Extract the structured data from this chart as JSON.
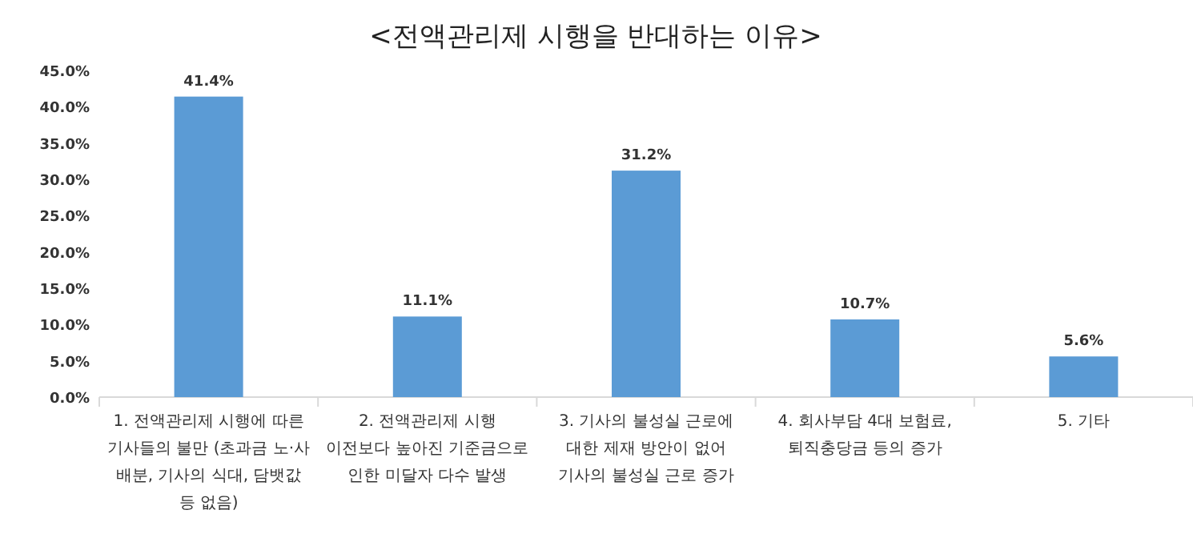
{
  "chart_data": {
    "type": "bar",
    "title": "<전액관리제 시행을 반대하는 이유>",
    "categories": [
      "1. 전액관리제 시행에 따른 기사들의 불만 (초과금 노·사 배분, 기사의 식대, 담뱃값 등 없음)",
      "2. 전액관리제 시행 이전보다 높아진 기준금으로 인한 미달자 다수 발생",
      "3. 기사의 불성실 근로에 대한 제재 방안이 없어 기사의 불성실 근로 증가",
      "4. 회사부담 4대 보험료, 퇴직충당금 등의 증가",
      "5. 기타"
    ],
    "values": [
      41.4,
      11.1,
      31.2,
      10.7,
      5.6
    ],
    "value_labels": [
      "41.4%",
      "11.1%",
      "31.2%",
      "10.7%",
      "5.6%"
    ],
    "color": "#5b9bd5",
    "ylim": [
      0,
      45
    ],
    "yticks": [
      {
        "value": 0,
        "label": "0.0%"
      },
      {
        "value": 5,
        "label": "5.0%"
      },
      {
        "value": 10,
        "label": "10.0%"
      },
      {
        "value": 15,
        "label": "15.0%"
      },
      {
        "value": 20,
        "label": "20.0%"
      },
      {
        "value": 25,
        "label": "25.0%"
      },
      {
        "value": 30,
        "label": "30.0%"
      },
      {
        "value": 35,
        "label": "35.0%"
      },
      {
        "value": 40,
        "label": "40.0%"
      },
      {
        "value": 45,
        "label": "45.0%"
      }
    ]
  }
}
